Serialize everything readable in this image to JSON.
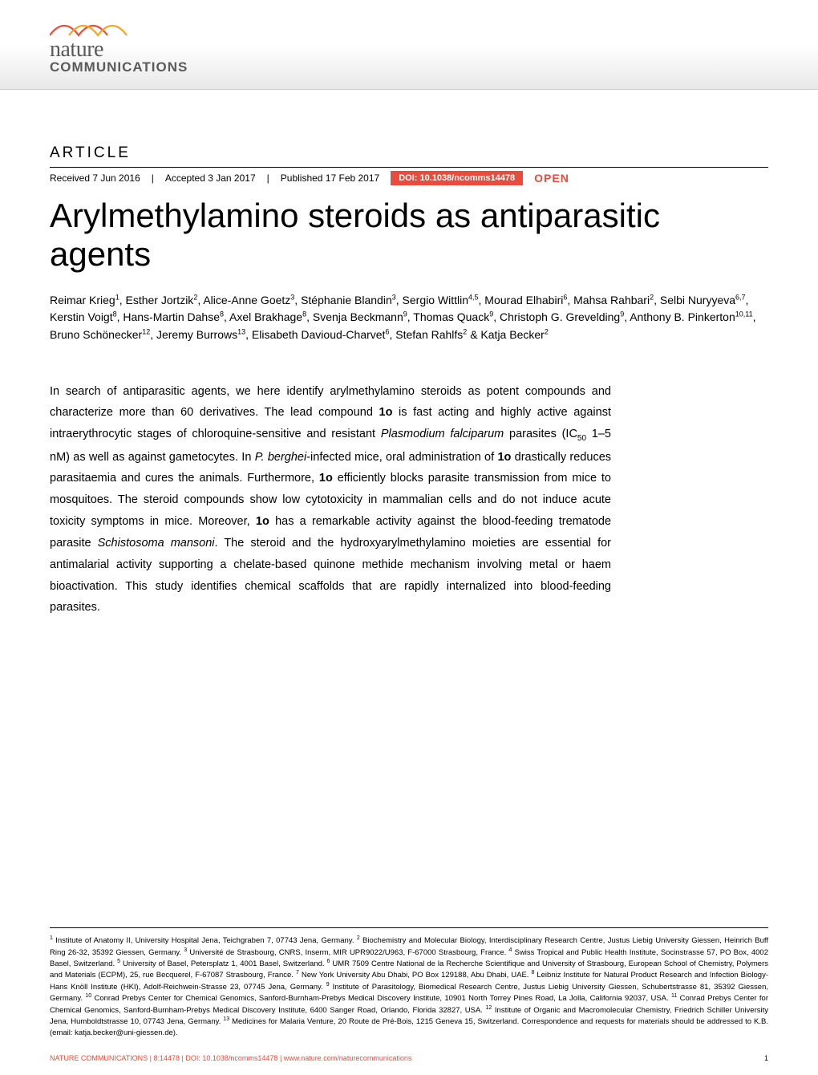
{
  "journal": {
    "logo_top": "nature",
    "logo_bottom": "COMMUNICATIONS",
    "wave_color1": "#e84c3d",
    "wave_color2": "#f5a623"
  },
  "article": {
    "label": "ARTICLE",
    "received": "Received 7 Jun 2016",
    "accepted": "Accepted 3 Jan 2017",
    "published": "Published 17 Feb 2017",
    "doi": "DOI: 10.1038/ncomms14478",
    "open": "OPEN",
    "title": "Arylmethylamino steroids as antiparasitic agents"
  },
  "authors_html": "Reimar Krieg<sup>1</sup>, Esther Jortzik<sup>2</sup>, Alice-Anne Goetz<sup>3</sup>, Stéphanie Blandin<sup>3</sup>, Sergio Wittlin<sup>4,5</sup>, Mourad Elhabiri<sup>6</sup>, Mahsa Rahbari<sup>2</sup>, Selbi Nuryyeva<sup>6,7</sup>, Kerstin Voigt<sup>8</sup>, Hans-Martin Dahse<sup>8</sup>, Axel Brakhage<sup>8</sup>, Svenja Beckmann<sup>9</sup>, Thomas Quack<sup>9</sup>, Christoph G. Grevelding<sup>9</sup>, Anthony B. Pinkerton<sup>10,11</sup>, Bruno Schönecker<sup>12</sup>, Jeremy Burrows<sup>13</sup>, Elisabeth Davioud-Charvet<sup>6</sup>, Stefan Rahlfs<sup>2</sup> & Katja Becker<sup>2</sup>",
  "abstract_html": "In search of antiparasitic agents, we here identify arylmethylamino steroids as potent compounds and characterize more than 60 derivatives. The lead compound <b>1o</b> is fast acting and highly active against intraerythrocytic stages of chloroquine-sensitive and resistant <i>Plasmodium falciparum</i> parasites (IC<sub>50</sub> 1–5 nM) as well as against gametocytes. In <i>P. berghei</i>-infected mice, oral administration of <b>1o</b> drastically reduces parasitaemia and cures the animals. Furthermore, <b>1o</b> efficiently blocks parasite transmission from mice to mosquitoes. The steroid compounds show low cytotoxicity in mammalian cells and do not induce acute toxicity symptoms in mice. Moreover, <b>1o</b> has a remarkable activity against the blood-feeding trematode parasite <i>Schistosoma mansoni</i>. The steroid and the hydroxyarylmethylamino moieties are essential for antimalarial activity supporting a chelate-based quinone methide mechanism involving metal or haem bioactivation. This study identifies chemical scaffolds that are rapidly internalized into blood-feeding parasites.",
  "affiliations_html": "<sup>1</sup> Institute of Anatomy II, University Hospital Jena, Teichgraben 7, 07743 Jena, Germany. <sup>2</sup> Biochemistry and Molecular Biology, Interdisciplinary Research Centre, Justus Liebig University Giessen, Heinrich Buff Ring 26-32, 35392 Giessen, Germany. <sup>3</sup> Université de Strasbourg, CNRS, Inserm, MIR UPR9022/U963, F-67000 Strasbourg, France. <sup>4</sup> Swiss Tropical and Public Health Institute, Socinstrasse 57, PO Box, 4002 Basel, Switzerland. <sup>5</sup> University of Basel, Petersplatz 1, 4001 Basel, Switzerland. <sup>6</sup> UMR 7509 Centre National de la Recherche Scientifique and University of Strasbourg, European School of Chemistry, Polymers and Materials (ECPM), 25, rue Becquerel, F-67087 Strasbourg, France. <sup>7</sup> New York University Abu Dhabi, PO Box 129188, Abu Dhabi, UAE. <sup>8</sup> Leibniz Institute for Natural Product Research and Infection Biology-Hans Knöll Institute (HKI), Adolf-Reichwein-Strasse 23, 07745 Jena, Germany. <sup>9</sup> Institute of Parasitology, Biomedical Research Centre, Justus Liebig University Giessen, Schubertstrasse 81, 35392 Giessen, Germany. <sup>10</sup> Conrad Prebys Center for Chemical Genomics, Sanford-Burnham-Prebys Medical Discovery Institute, 10901 North Torrey Pines Road, La Jolla, California 92037, USA. <sup>11</sup> Conrad Prebys Center for Chemical Genomics, Sanford-Burnham-Prebys Medical Discovery Institute, 6400 Sanger Road, Orlando, Florida 32827, USA. <sup>12</sup> Institute of Organic and Macromolecular Chemistry, Friedrich Schiller University Jena, Humboldtstrasse 10, 07743 Jena, Germany. <sup>13</sup> Medicines for Malaria Venture, 20 Route de Pré-Bois, 1215 Geneva 15, Switzerland. Correspondence and requests for materials should be addressed to K.B. (email: katja.becker@uni-giessen.de).",
  "footer": {
    "left": "NATURE COMMUNICATIONS | 8:14478 | DOI: 10.1038/ncomms14478 | www.nature.com/naturecommunications",
    "page": "1"
  },
  "colors": {
    "accent": "#e84c3d",
    "text": "#000000",
    "logo_grey": "#5a5a5a",
    "band_grey": "#e8e8e8"
  },
  "typography": {
    "title_fontsize": 42,
    "title_weight": 300,
    "body_fontsize": 14.5,
    "authors_fontsize": 14,
    "affil_fontsize": 9.5,
    "footer_fontsize": 9
  }
}
